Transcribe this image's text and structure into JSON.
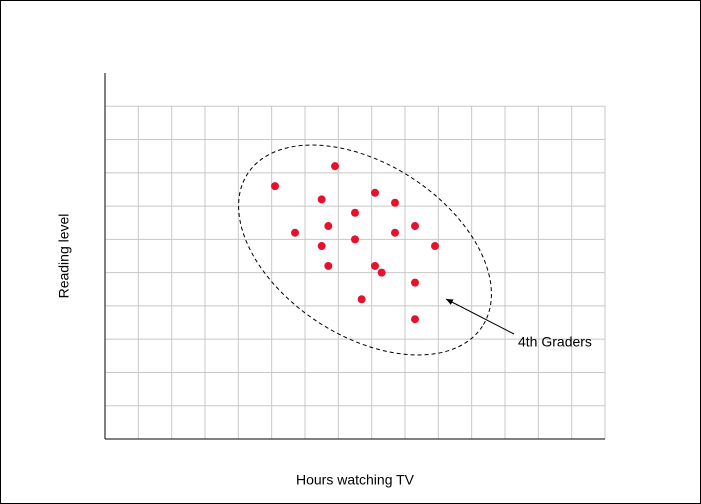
{
  "chart_data": {
    "type": "scatter",
    "x_label": "Hours watching TV",
    "y_label": "Reading level",
    "annotation": "4th Graders",
    "color": "#e8112d",
    "x": [
      5.1,
      6.9,
      6.5,
      8.1,
      8.7,
      7.5,
      5.7,
      6.7,
      6.5,
      7.5,
      8.7,
      9.3,
      9.9,
      6.7,
      8.1,
      8.3,
      9.3,
      7.7,
      9.3
    ],
    "values": [
      7.6,
      8.2,
      7.2,
      7.4,
      7.1,
      6.8,
      6.2,
      6.4,
      5.8,
      6.0,
      6.2,
      6.4,
      5.8,
      5.2,
      5.2,
      5.0,
      4.7,
      4.2,
      3.6
    ],
    "xlim": [
      0,
      15
    ],
    "ylim": [
      0,
      11
    ],
    "xticks": [
      1,
      2,
      3,
      4,
      5,
      6,
      7,
      8,
      9,
      10,
      11,
      12,
      13,
      14
    ],
    "yticks": [
      1,
      2,
      3,
      4,
      5,
      6,
      7,
      8,
      9,
      10
    ],
    "grid": true
  }
}
